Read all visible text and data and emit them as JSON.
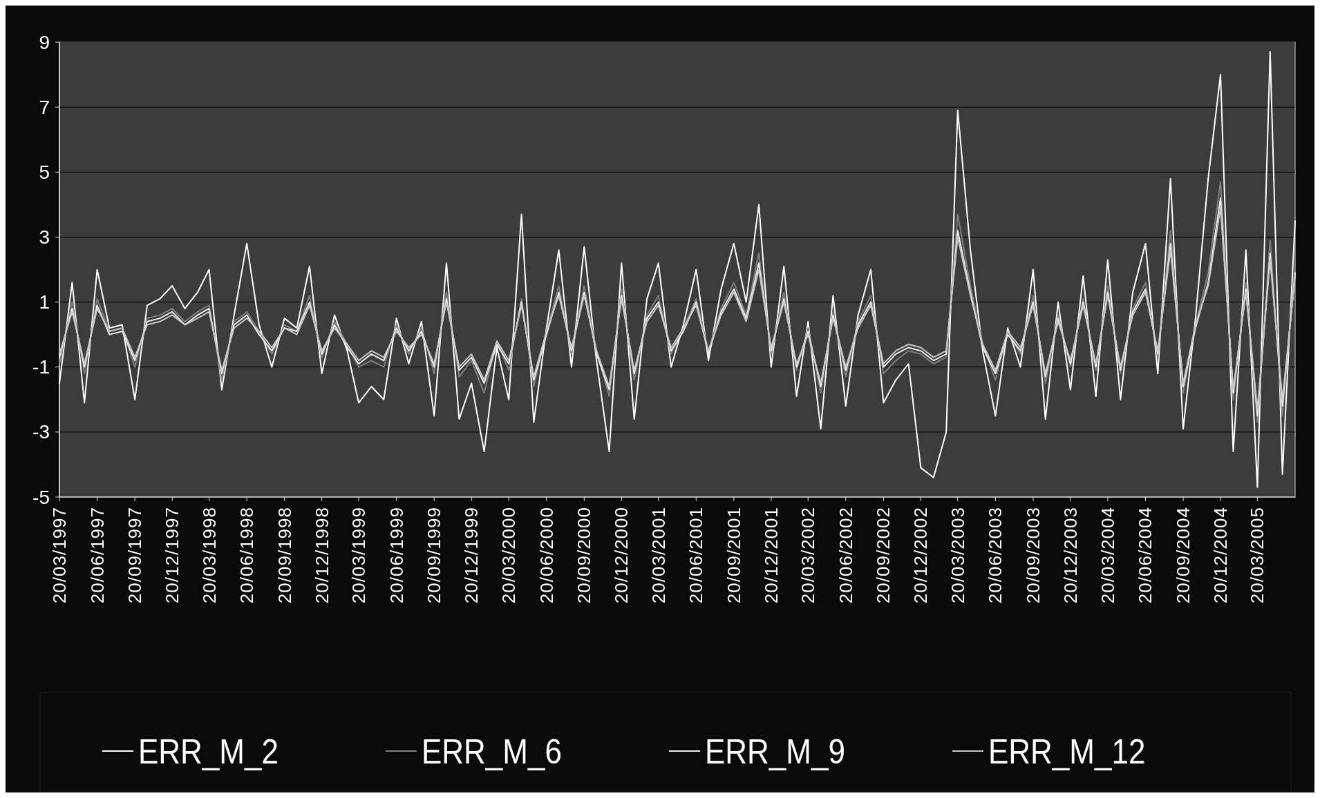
{
  "chart_data": {
    "type": "line",
    "ylim": [
      -5,
      9
    ],
    "yticks": [
      -5,
      -3,
      -1,
      1,
      3,
      5,
      7,
      9
    ],
    "grid": "y",
    "legend": "bottom",
    "marker": "none",
    "line_style": "solid",
    "xlim": [
      "1997-03-20",
      "2005-06-20"
    ],
    "xticks": [
      {
        "value": "1997-03-20",
        "label": "20/03/1997"
      },
      {
        "value": "1997-06-20",
        "label": "20/06/1997"
      },
      {
        "value": "1997-09-20",
        "label": "20/09/1997"
      },
      {
        "value": "1997-12-20",
        "label": "20/12/1997"
      },
      {
        "value": "1998-03-20",
        "label": "20/03/1998"
      },
      {
        "value": "1998-06-20",
        "label": "20/06/1998"
      },
      {
        "value": "1998-09-20",
        "label": "20/09/1998"
      },
      {
        "value": "1998-12-20",
        "label": "20/12/1998"
      },
      {
        "value": "1999-03-20",
        "label": "20/03/1999"
      },
      {
        "value": "1999-06-20",
        "label": "20/06/1999"
      },
      {
        "value": "1999-09-20",
        "label": "20/09/1999"
      },
      {
        "value": "1999-12-20",
        "label": "20/12/1999"
      },
      {
        "value": "2000-03-20",
        "label": "20/03/2000"
      },
      {
        "value": "2000-06-20",
        "label": "20/06/2000"
      },
      {
        "value": "2000-09-20",
        "label": "20/09/2000"
      },
      {
        "value": "2000-12-20",
        "label": "20/12/2000"
      },
      {
        "value": "2001-03-20",
        "label": "20/03/2001"
      },
      {
        "value": "2001-06-20",
        "label": "20/06/2001"
      },
      {
        "value": "2001-09-20",
        "label": "20/09/2001"
      },
      {
        "value": "2001-12-20",
        "label": "20/12/2001"
      },
      {
        "value": "2002-03-20",
        "label": "20/03/2002"
      },
      {
        "value": "2002-06-20",
        "label": "20/06/2002"
      },
      {
        "value": "2002-09-20",
        "label": "20/09/2002"
      },
      {
        "value": "2002-12-20",
        "label": "20/12/2002"
      },
      {
        "value": "2003-03-20",
        "label": "20/03/2003"
      },
      {
        "value": "2003-06-20",
        "label": "20/06/2003"
      },
      {
        "value": "2003-09-20",
        "label": "20/09/2003"
      },
      {
        "value": "2003-12-20",
        "label": "20/12/2003"
      },
      {
        "value": "2004-03-20",
        "label": "20/03/2004"
      },
      {
        "value": "2004-06-20",
        "label": "20/06/2004"
      },
      {
        "value": "2004-09-20",
        "label": "20/09/2004"
      },
      {
        "value": "2004-12-20",
        "label": "20/12/2004"
      },
      {
        "value": "2005-03-20",
        "label": "20/03/2005"
      }
    ],
    "x": [
      "1997-03-20",
      "1997-04-20",
      "1997-05-20",
      "1997-06-20",
      "1997-07-20",
      "1997-08-20",
      "1997-09-20",
      "1997-10-20",
      "1997-11-20",
      "1997-12-20",
      "1998-01-20",
      "1998-02-20",
      "1998-03-20",
      "1998-04-20",
      "1998-05-20",
      "1998-06-20",
      "1998-07-20",
      "1998-08-20",
      "1998-09-20",
      "1998-10-20",
      "1998-11-20",
      "1998-12-20",
      "1999-01-20",
      "1999-02-20",
      "1999-03-20",
      "1999-04-20",
      "1999-05-20",
      "1999-06-20",
      "1999-07-20",
      "1999-08-20",
      "1999-09-20",
      "1999-10-20",
      "1999-11-20",
      "1999-12-20",
      "2000-01-20",
      "2000-02-20",
      "2000-03-20",
      "2000-04-20",
      "2000-05-20",
      "2000-06-20",
      "2000-07-20",
      "2000-08-20",
      "2000-09-20",
      "2000-10-20",
      "2000-11-20",
      "2000-12-20",
      "2001-01-20",
      "2001-02-20",
      "2001-03-20",
      "2001-04-20",
      "2001-05-20",
      "2001-06-20",
      "2001-07-20",
      "2001-08-20",
      "2001-09-20",
      "2001-10-20",
      "2001-11-20",
      "2001-12-20",
      "2002-01-20",
      "2002-02-20",
      "2002-03-20",
      "2002-04-20",
      "2002-05-20",
      "2002-06-20",
      "2002-07-20",
      "2002-08-20",
      "2002-09-20",
      "2002-10-20",
      "2002-11-20",
      "2002-12-20",
      "2003-01-20",
      "2003-02-20",
      "2003-03-20",
      "2003-04-20",
      "2003-05-20",
      "2003-06-20",
      "2003-07-20",
      "2003-08-20",
      "2003-09-20",
      "2003-10-20",
      "2003-11-20",
      "2003-12-20",
      "2004-01-20",
      "2004-02-20",
      "2004-03-20",
      "2004-04-20",
      "2004-05-20",
      "2004-06-20",
      "2004-07-20",
      "2004-08-20",
      "2004-09-20",
      "2004-10-20",
      "2004-11-20",
      "2004-12-20",
      "2005-01-20",
      "2005-02-20",
      "2005-03-20",
      "2005-04-20",
      "2005-05-20",
      "2005-06-20"
    ],
    "series": [
      {
        "name": "ERR_M_2",
        "color": "#ffffff",
        "values": [
          -1.5,
          1.6,
          -2.1,
          2.0,
          0.2,
          0.3,
          -2.0,
          0.9,
          1.1,
          1.5,
          0.8,
          1.3,
          2.0,
          -1.7,
          0.6,
          2.8,
          0.3,
          -1.0,
          0.5,
          0.2,
          2.1,
          -1.2,
          0.6,
          -0.5,
          -2.1,
          -1.6,
          -2.0,
          0.5,
          -0.9,
          0.4,
          -2.5,
          2.2,
          -2.6,
          -1.5,
          -3.6,
          -0.4,
          -2.0,
          3.7,
          -2.7,
          0.2,
          2.6,
          -1.0,
          2.7,
          -0.8,
          -3.6,
          2.2,
          -2.6,
          1.1,
          2.2,
          -1.0,
          0.3,
          2.0,
          -0.8,
          1.4,
          2.8,
          1.0,
          4.0,
          -1.0,
          2.1,
          -1.9,
          0.4,
          -2.9,
          1.2,
          -2.2,
          0.6,
          2.0,
          -2.1,
          -1.4,
          -0.9,
          -4.1,
          -4.4,
          -3.0,
          6.9,
          2.6,
          -0.5,
          -2.5,
          0.2,
          -1.0,
          2.0,
          -2.6,
          1.0,
          -1.7,
          1.8,
          -1.9,
          2.3,
          -2.0,
          1.3,
          2.8,
          -1.2,
          4.8,
          -2.9,
          0.5,
          4.8,
          8.0,
          -3.6,
          2.6,
          -4.7,
          8.7,
          -4.3,
          3.5
        ]
      },
      {
        "name": "ERR_M_6",
        "color": "#7f7f7f",
        "values": [
          -0.9,
          1.0,
          -1.2,
          1.1,
          0.1,
          0.2,
          -1.0,
          0.5,
          0.6,
          0.8,
          0.4,
          0.7,
          0.9,
          -1.4,
          0.4,
          0.7,
          0.1,
          -0.6,
          0.3,
          0.1,
          1.2,
          -0.7,
          0.4,
          -0.3,
          -1.0,
          -0.8,
          -1.0,
          0.3,
          -0.6,
          0.2,
          -1.2,
          1.3,
          -1.3,
          -0.8,
          -1.8,
          -0.2,
          -1.1,
          1.1,
          -1.6,
          0.1,
          1.5,
          -0.6,
          1.5,
          -0.5,
          -1.9,
          1.4,
          -1.4,
          0.6,
          1.2,
          -0.6,
          0.2,
          1.1,
          -0.5,
          0.8,
          1.6,
          0.6,
          2.5,
          -0.6,
          1.3,
          -1.1,
          0.2,
          -1.8,
          0.7,
          -1.3,
          0.4,
          1.2,
          -1.2,
          -0.8,
          -0.5,
          -0.6,
          -0.9,
          -0.7,
          3.7,
          1.5,
          -0.3,
          -1.4,
          0.1,
          -0.6,
          1.2,
          -1.5,
          0.6,
          -1.0,
          1.1,
          -1.1,
          1.5,
          -1.2,
          0.8,
          1.6,
          -0.7,
          3.2,
          -1.8,
          0.3,
          1.9,
          4.7,
          -2.0,
          1.6,
          -2.7,
          2.9,
          -2.5,
          2.2
        ]
      },
      {
        "name": "ERR_M_9",
        "color": "#eeeeee",
        "values": [
          -0.7,
          0.8,
          -1.0,
          0.9,
          0.0,
          0.1,
          -0.8,
          0.4,
          0.5,
          0.7,
          0.3,
          0.6,
          0.8,
          -1.2,
          0.3,
          0.6,
          0.0,
          -0.5,
          0.2,
          0.1,
          1.0,
          -0.6,
          0.3,
          -0.4,
          -0.9,
          -0.6,
          -0.8,
          0.2,
          -0.5,
          0.1,
          -1.0,
          1.1,
          -1.1,
          -0.7,
          -1.5,
          -0.3,
          -0.9,
          1.0,
          -1.4,
          0.0,
          1.3,
          -0.5,
          1.3,
          -0.6,
          -1.7,
          1.2,
          -1.2,
          0.5,
          1.0,
          -0.5,
          0.1,
          1.0,
          -0.6,
          0.7,
          1.4,
          0.5,
          2.2,
          -0.5,
          1.1,
          -1.0,
          0.1,
          -1.6,
          0.6,
          -1.1,
          0.3,
          1.0,
          -1.0,
          -0.6,
          -0.4,
          -0.5,
          -0.8,
          -0.6,
          3.2,
          1.3,
          -0.4,
          -1.2,
          0.0,
          -0.5,
          1.0,
          -1.3,
          0.5,
          -0.9,
          1.0,
          -1.0,
          1.3,
          -1.1,
          0.7,
          1.4,
          -0.6,
          2.8,
          -1.6,
          0.2,
          1.6,
          4.2,
          -1.8,
          1.4,
          -2.5,
          2.5,
          -2.2,
          1.9
        ]
      },
      {
        "name": "ERR_M_12",
        "color": "#c8c8c8",
        "values": [
          -0.6,
          0.7,
          -0.9,
          0.8,
          0.1,
          0.2,
          -0.7,
          0.3,
          0.4,
          0.6,
          0.3,
          0.5,
          0.7,
          -1.1,
          0.2,
          0.5,
          0.1,
          -0.4,
          0.2,
          0.0,
          0.9,
          -0.5,
          0.2,
          -0.3,
          -0.8,
          -0.5,
          -0.7,
          0.1,
          -0.4,
          0.0,
          -0.9,
          1.0,
          -1.0,
          -0.6,
          -1.4,
          -0.2,
          -0.8,
          0.9,
          -1.3,
          0.1,
          1.2,
          -0.4,
          1.2,
          -0.5,
          -1.6,
          1.1,
          -1.1,
          0.4,
          0.9,
          -0.4,
          0.2,
          0.9,
          -0.5,
          0.6,
          1.3,
          0.4,
          2.0,
          -0.4,
          1.0,
          -0.9,
          0.0,
          -1.5,
          0.5,
          -1.0,
          0.2,
          0.9,
          -0.9,
          -0.5,
          -0.3,
          -0.4,
          -0.7,
          -0.5,
          3.0,
          1.2,
          -0.3,
          -1.1,
          0.1,
          -0.4,
          0.9,
          -1.2,
          0.4,
          -0.8,
          0.9,
          -0.9,
          1.2,
          -1.0,
          0.6,
          1.3,
          -0.5,
          2.6,
          -1.5,
          0.3,
          1.5,
          3.9,
          -1.7,
          1.3,
          -2.3,
          2.3,
          -2.0,
          1.8
        ]
      }
    ]
  }
}
